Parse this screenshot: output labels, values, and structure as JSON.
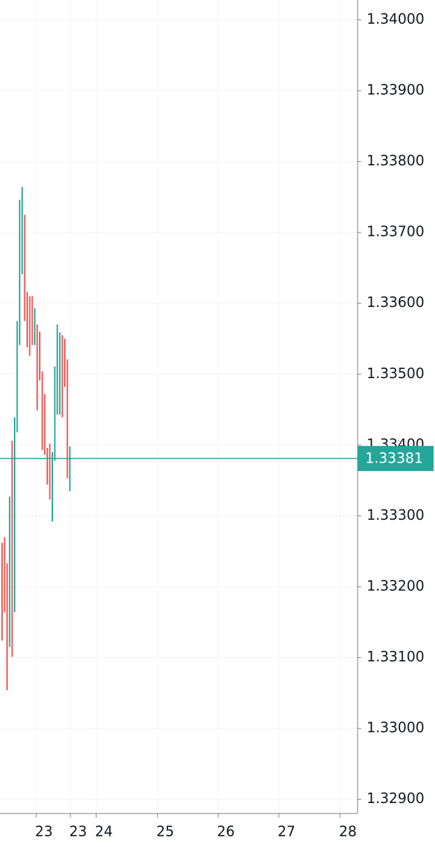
{
  "chart_data": {
    "type": "ohlc",
    "high": [
      1.33262,
      1.3327,
      1.33233,
      1.33327,
      1.33406,
      1.33439,
      1.33575,
      1.33746,
      1.33764,
      1.33725,
      1.33616,
      1.3361,
      1.3361,
      1.33593,
      1.3357,
      1.3356,
      1.33504,
      1.33472,
      1.33396,
      1.33402,
      1.3339,
      1.33511,
      1.3357,
      1.33559,
      1.33555,
      1.3355,
      1.33521,
      1.33398
    ],
    "low": [
      1.33124,
      1.33164,
      1.33054,
      1.33115,
      1.33101,
      1.33164,
      1.33418,
      1.33541,
      1.33641,
      1.33575,
      1.33538,
      1.33526,
      1.33541,
      1.33541,
      1.33449,
      1.33491,
      1.33393,
      1.33386,
      1.33344,
      1.33323,
      1.33292,
      1.33378,
      1.33443,
      1.33443,
      1.33439,
      1.33482,
      1.33353,
      1.33335
    ],
    "up": [
      false,
      false,
      false,
      true,
      false,
      true,
      true,
      true,
      true,
      false,
      false,
      false,
      false,
      true,
      false,
      false,
      false,
      false,
      false,
      false,
      true,
      true,
      true,
      true,
      false,
      false,
      false,
      true
    ],
    "up_color": "#26a69a",
    "down_color": "#ef5350",
    "ylim": [
      1.3288,
      1.34028
    ],
    "yticks": [
      {
        "value": 1.34,
        "label": "1.34000"
      },
      {
        "value": 1.339,
        "label": "1.33900"
      },
      {
        "value": 1.338,
        "label": "1.33800"
      },
      {
        "value": 1.337,
        "label": "1.33700"
      },
      {
        "value": 1.336,
        "label": "1.33600"
      },
      {
        "value": 1.335,
        "label": "1.33500"
      },
      {
        "value": 1.334,
        "label": "1.33400"
      },
      {
        "value": 1.333,
        "label": "1.33300"
      },
      {
        "value": 1.332,
        "label": "1.33200"
      },
      {
        "value": 1.331,
        "label": "1.33100"
      },
      {
        "value": 1.33,
        "label": "1.33000"
      },
      {
        "value": 1.329,
        "label": "1.32900"
      }
    ],
    "x_labels": [
      "23",
      "23",
      "24",
      "25",
      "26",
      "27",
      "28"
    ],
    "last_price": 1.33381,
    "grid": true
  }
}
